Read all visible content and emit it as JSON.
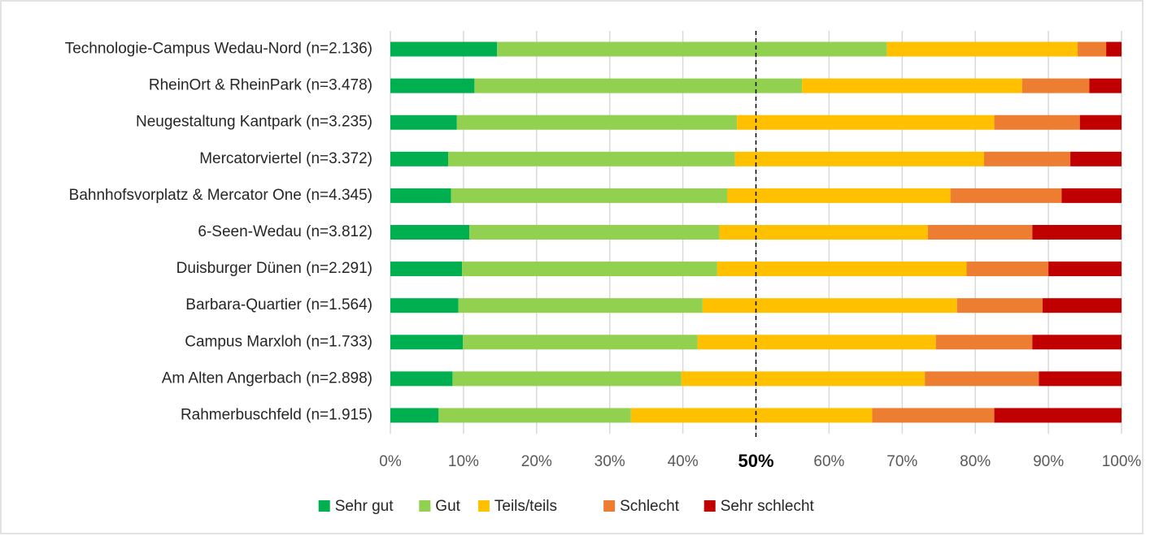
{
  "chart_data": {
    "type": "stacked-barh",
    "categories": [
      "Technologie-Campus Wedau-Nord (n=2.136)",
      "RheinOrt & RheinPark (n=3.478)",
      "Neugestaltung Kantpark (n=3.235)",
      "Mercatorviertel (n=3.372)",
      "Bahnhofsvorplatz & Mercator One (n=4.345)",
      "6-Seen-Wedau (n=3.812)",
      "Duisburger Dünen (n=2.291)",
      "Barbara-Quartier (n=1.564)",
      "Campus Marxloh (n=1.733)",
      "Am Alten Angerbach (n=2.898)",
      "Rahmerbuschfeld (n=1.915)"
    ],
    "series": [
      {
        "name": "Sehr gut",
        "color": "#00b050",
        "values": [
          14.6,
          11.5,
          9.1,
          7.9,
          8.3,
          10.8,
          9.8,
          9.3,
          9.9,
          8.5,
          6.6
        ]
      },
      {
        "name": "Gut",
        "color": "#92d050",
        "values": [
          53.3,
          44.8,
          38.3,
          39.2,
          37.8,
          34.2,
          34.9,
          33.4,
          32.1,
          31.3,
          26.3
        ]
      },
      {
        "name": "Teils/teils",
        "color": "#ffc000",
        "values": [
          26.1,
          30.1,
          35.2,
          34.1,
          30.5,
          28.5,
          34.1,
          34.8,
          32.6,
          33.3,
          33.0
        ]
      },
      {
        "name": "Schlecht",
        "color": "#ed7d31",
        "values": [
          3.9,
          9.2,
          11.7,
          11.8,
          15.2,
          14.3,
          11.2,
          11.7,
          13.2,
          15.6,
          16.7
        ]
      },
      {
        "name": "Sehr schlecht",
        "color": "#c00000",
        "values": [
          2.1,
          4.4,
          5.7,
          7.0,
          8.2,
          12.2,
          10.0,
          10.8,
          12.2,
          11.3,
          17.4
        ]
      }
    ],
    "xlim": [
      0,
      100
    ],
    "xticks": [
      {
        "value": 0,
        "label": "0%"
      },
      {
        "value": 10,
        "label": "10%"
      },
      {
        "value": 20,
        "label": "20%"
      },
      {
        "value": 30,
        "label": "30%"
      },
      {
        "value": 40,
        "label": "40%"
      },
      {
        "value": 50,
        "label": "50%"
      },
      {
        "value": 60,
        "label": "60%"
      },
      {
        "value": 70,
        "label": "70%"
      },
      {
        "value": 80,
        "label": "80%"
      },
      {
        "value": 90,
        "label": "90%"
      },
      {
        "value": 100,
        "label": "100%"
      }
    ],
    "reference_line": 50,
    "grid": true,
    "legend": "bottom"
  }
}
